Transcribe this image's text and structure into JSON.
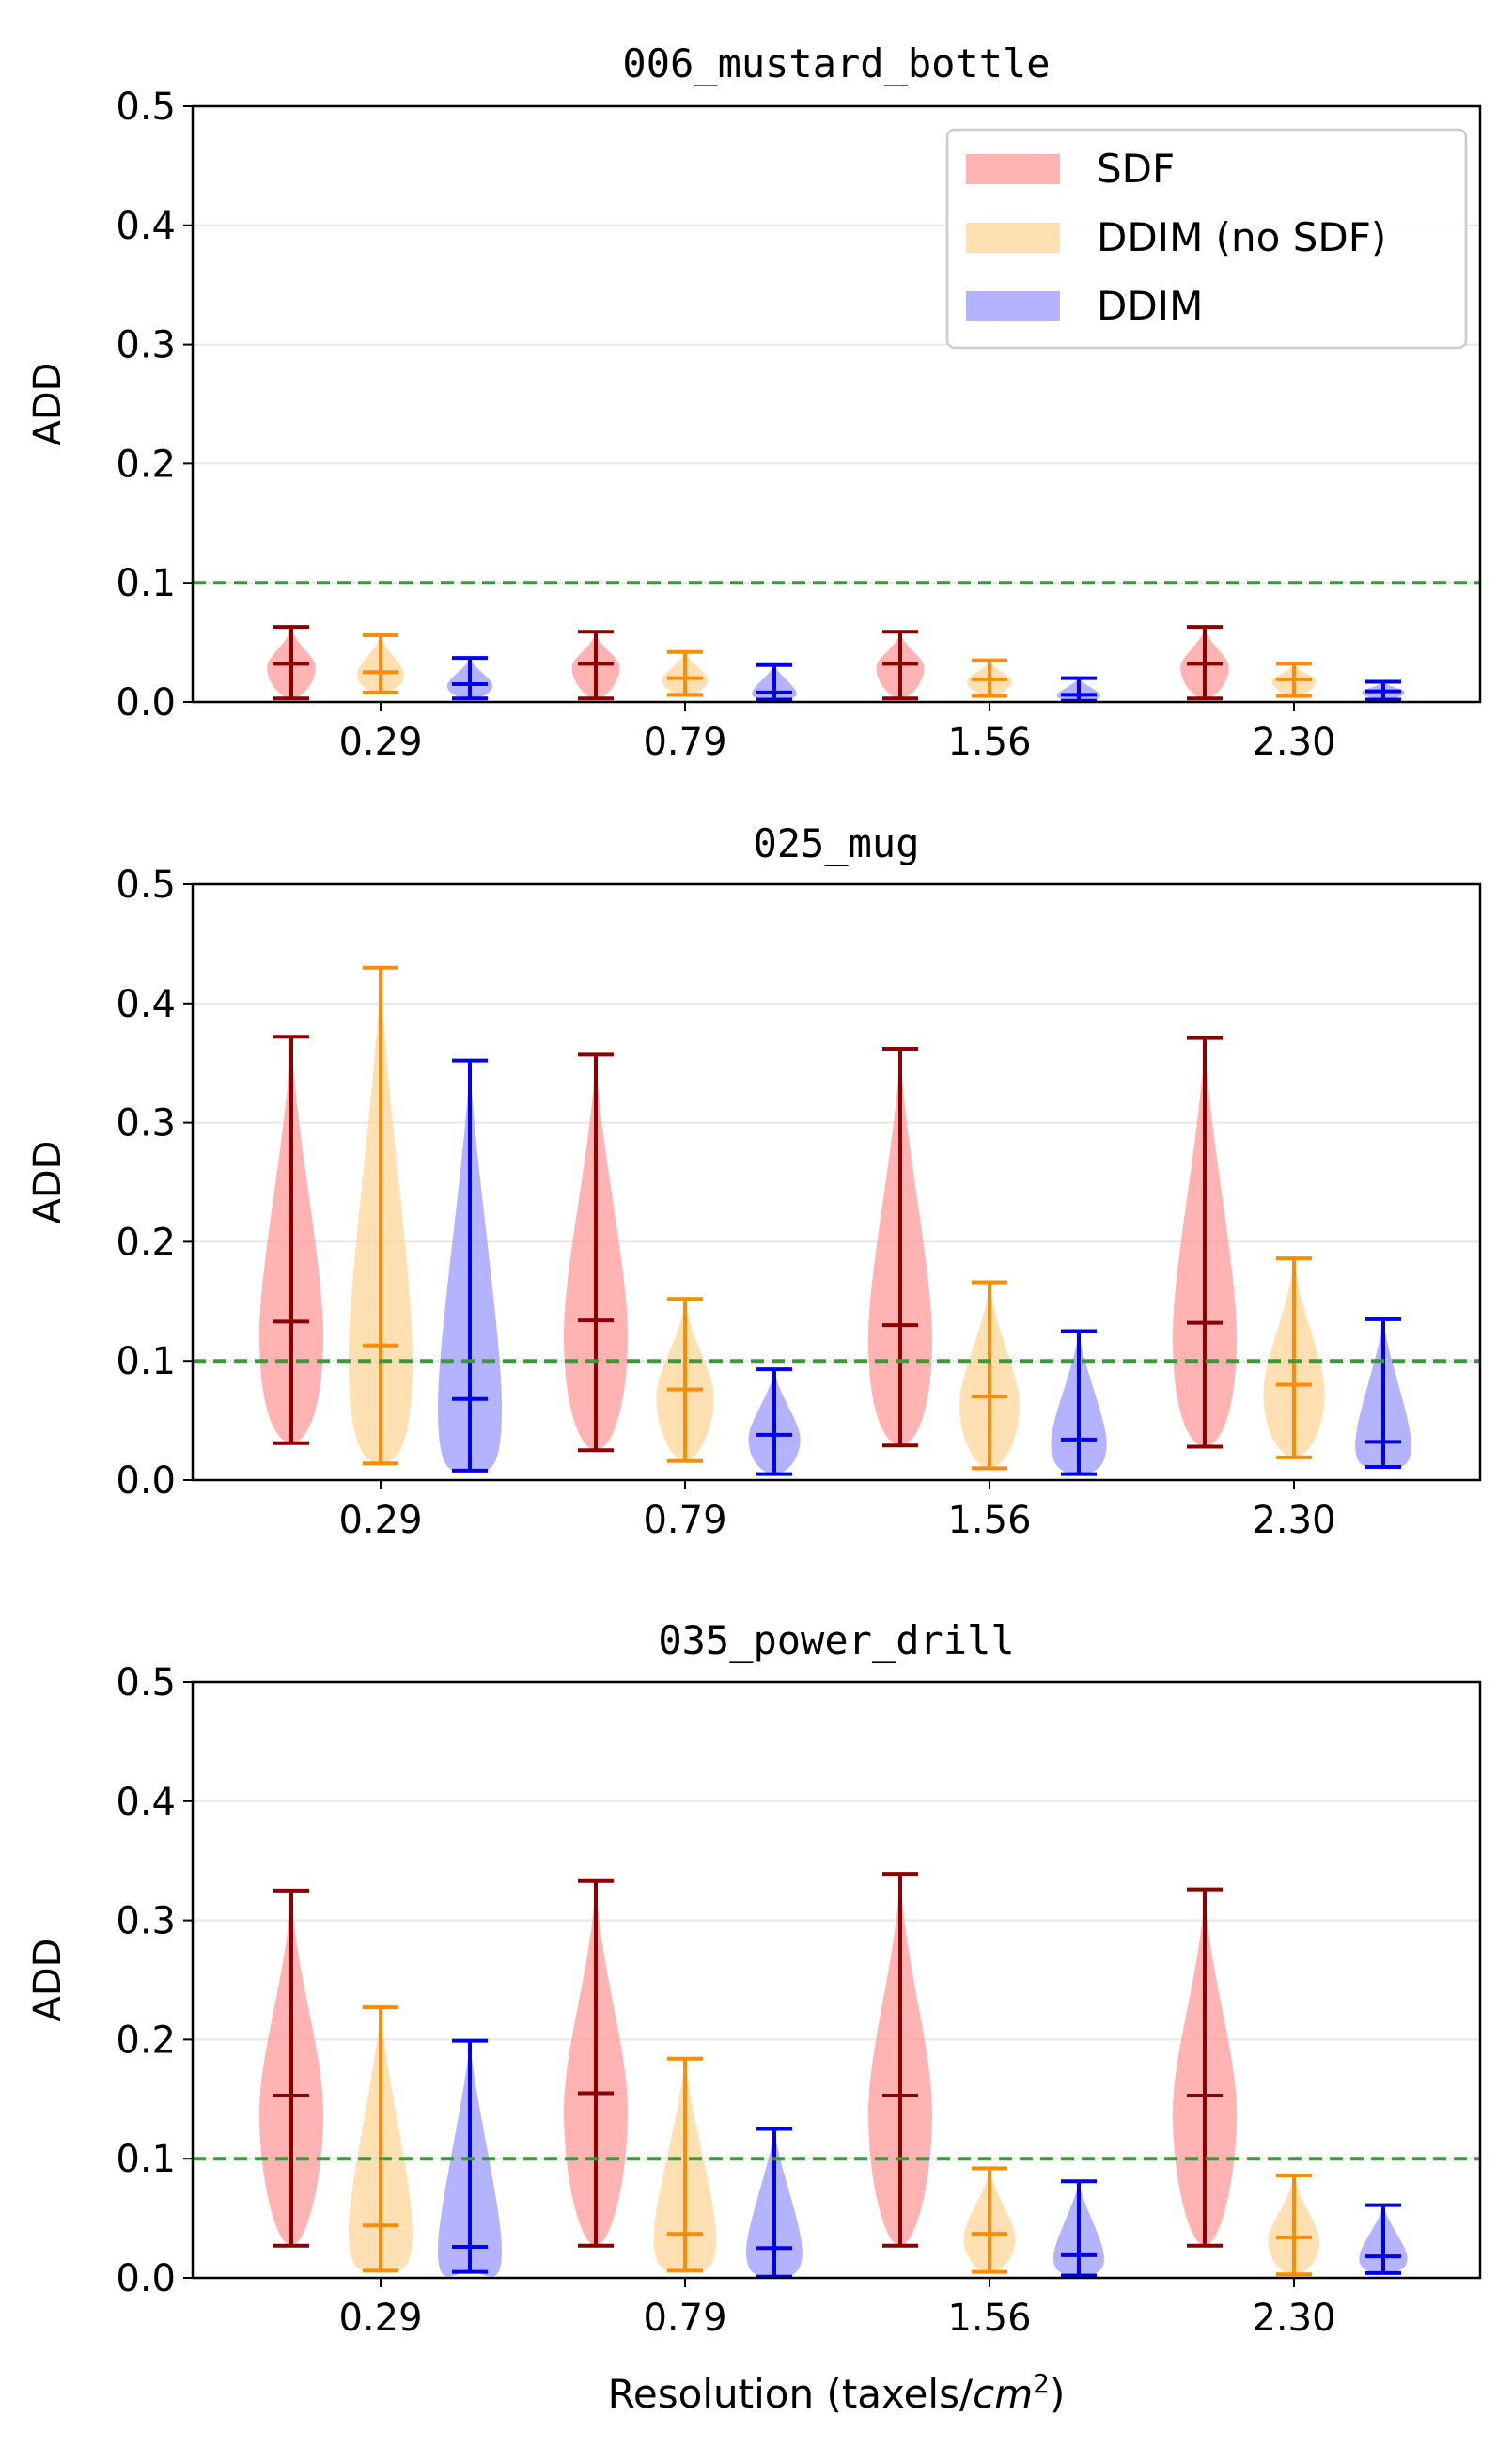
{
  "chart_data": {
    "type": "violin",
    "categories": [
      "0.29",
      "0.79",
      "1.56",
      "2.30"
    ],
    "xlabel_text": "Resolution (taxels/",
    "xlabel_unit": "cm",
    "xlabel_exp": "2",
    "xlabel_close": ")",
    "legend": [
      "SDF",
      "DDIM (no SDF)",
      "DDIM"
    ],
    "legend_position": "upper-right (top panel only)",
    "colors": {
      "SDF": {
        "fill": "#ff9999",
        "line": "#8b0000"
      },
      "DDIM (no SDF)": {
        "fill": "#ffd699",
        "line": "#ff8c00"
      },
      "DDIM": {
        "fill": "#9999ff",
        "line": "#0000ee"
      }
    },
    "threshold": {
      "value": 0.1,
      "color": "#3a9a3a"
    },
    "ylim": [
      0,
      0.5
    ],
    "yticks": [
      "0.0",
      "0.1",
      "0.2",
      "0.3",
      "0.4",
      "0.5"
    ],
    "panels": [
      {
        "title": "006_mustard_bottle",
        "ylabel": "ADD",
        "series": [
          {
            "name": "SDF",
            "stats": [
              {
                "min": 0.003,
                "median": 0.032,
                "max": 0.063
              },
              {
                "min": 0.003,
                "median": 0.032,
                "max": 0.059
              },
              {
                "min": 0.003,
                "median": 0.032,
                "max": 0.059
              },
              {
                "min": 0.003,
                "median": 0.032,
                "max": 0.063
              }
            ]
          },
          {
            "name": "DDIM (no SDF)",
            "stats": [
              {
                "min": 0.008,
                "median": 0.025,
                "max": 0.056
              },
              {
                "min": 0.006,
                "median": 0.02,
                "max": 0.042
              },
              {
                "min": 0.005,
                "median": 0.019,
                "max": 0.035
              },
              {
                "min": 0.005,
                "median": 0.019,
                "max": 0.032
              }
            ]
          },
          {
            "name": "DDIM",
            "stats": [
              {
                "min": 0.003,
                "median": 0.015,
                "max": 0.037
              },
              {
                "min": 0.002,
                "median": 0.008,
                "max": 0.031
              },
              {
                "min": 0.001,
                "median": 0.006,
                "max": 0.02
              },
              {
                "min": 0.002,
                "median": 0.009,
                "max": 0.017
              }
            ]
          }
        ]
      },
      {
        "title": "025_mug",
        "ylabel": "ADD",
        "series": [
          {
            "name": "SDF",
            "stats": [
              {
                "min": 0.031,
                "median": 0.133,
                "max": 0.372
              },
              {
                "min": 0.025,
                "median": 0.134,
                "max": 0.357
              },
              {
                "min": 0.029,
                "median": 0.13,
                "max": 0.362
              },
              {
                "min": 0.028,
                "median": 0.132,
                "max": 0.371
              }
            ]
          },
          {
            "name": "DDIM (no SDF)",
            "stats": [
              {
                "min": 0.014,
                "median": 0.113,
                "max": 0.43
              },
              {
                "min": 0.016,
                "median": 0.076,
                "max": 0.152
              },
              {
                "min": 0.01,
                "median": 0.07,
                "max": 0.166
              },
              {
                "min": 0.019,
                "median": 0.08,
                "max": 0.186
              }
            ]
          },
          {
            "name": "DDIM",
            "stats": [
              {
                "min": 0.008,
                "median": 0.068,
                "max": 0.352
              },
              {
                "min": 0.005,
                "median": 0.038,
                "max": 0.093
              },
              {
                "min": 0.005,
                "median": 0.034,
                "max": 0.125
              },
              {
                "min": 0.011,
                "median": 0.032,
                "max": 0.135
              }
            ]
          }
        ]
      },
      {
        "title": "035_power_drill",
        "ylabel": "ADD",
        "series": [
          {
            "name": "SDF",
            "stats": [
              {
                "min": 0.027,
                "median": 0.153,
                "max": 0.325
              },
              {
                "min": 0.027,
                "median": 0.155,
                "max": 0.333
              },
              {
                "min": 0.027,
                "median": 0.153,
                "max": 0.339
              },
              {
                "min": 0.027,
                "median": 0.153,
                "max": 0.326
              }
            ]
          },
          {
            "name": "DDIM (no SDF)",
            "stats": [
              {
                "min": 0.006,
                "median": 0.044,
                "max": 0.227
              },
              {
                "min": 0.006,
                "median": 0.037,
                "max": 0.184
              },
              {
                "min": 0.005,
                "median": 0.037,
                "max": 0.092
              },
              {
                "min": 0.003,
                "median": 0.034,
                "max": 0.086
              }
            ]
          },
          {
            "name": "DDIM",
            "stats": [
              {
                "min": 0.005,
                "median": 0.026,
                "max": 0.199
              },
              {
                "min": 0.001,
                "median": 0.025,
                "max": 0.125
              },
              {
                "min": 0.002,
                "median": 0.019,
                "max": 0.081
              },
              {
                "min": 0.004,
                "median": 0.018,
                "max": 0.061
              }
            ]
          }
        ]
      }
    ]
  }
}
